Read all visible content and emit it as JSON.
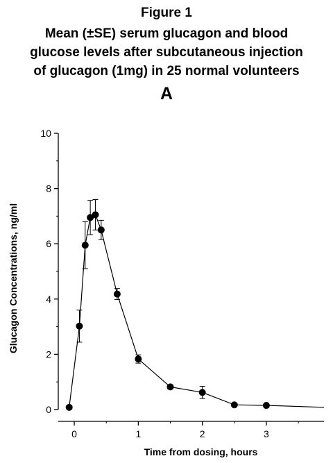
{
  "figure": {
    "label": "Figure 1",
    "title_lines": [
      "Mean (±SE) serum glucagon and blood",
      "glucose levels after subcutaneous injection",
      "of glucagon (1mg) in 25 normal volunteers"
    ],
    "panel": "A"
  },
  "chart_data": {
    "type": "line",
    "title": "Mean (±SE) serum glucagon and blood glucose levels after subcutaneous injection of glucagon (1mg) in 25 normal volunteers",
    "xlabel": "Time from dosing, hours",
    "ylabel": "Glucagon Concentrations, ng/ml",
    "xlim": [
      -0.25,
      3.9
    ],
    "ylim": [
      0,
      10
    ],
    "xticks": [
      0,
      1,
      2,
      3
    ],
    "yticks": [
      0,
      2,
      4,
      6,
      8,
      10
    ],
    "grid": false,
    "series": [
      {
        "x": [
          -0.08,
          0.08,
          0.17,
          0.25,
          0.33,
          0.42,
          0.67,
          1.0,
          1.5,
          2.0,
          2.5,
          3.0
        ],
        "y": [
          0.08,
          3.02,
          5.95,
          6.95,
          7.05,
          6.5,
          4.18,
          1.83,
          0.82,
          0.62,
          0.17,
          0.15
        ],
        "err": [
          0,
          0.58,
          0.85,
          0.62,
          0.55,
          0.35,
          0.2,
          0.15,
          0.08,
          0.22,
          0.05,
          0.04
        ]
      }
    ],
    "tail_to": 3.9,
    "tail_y": 0.08
  }
}
